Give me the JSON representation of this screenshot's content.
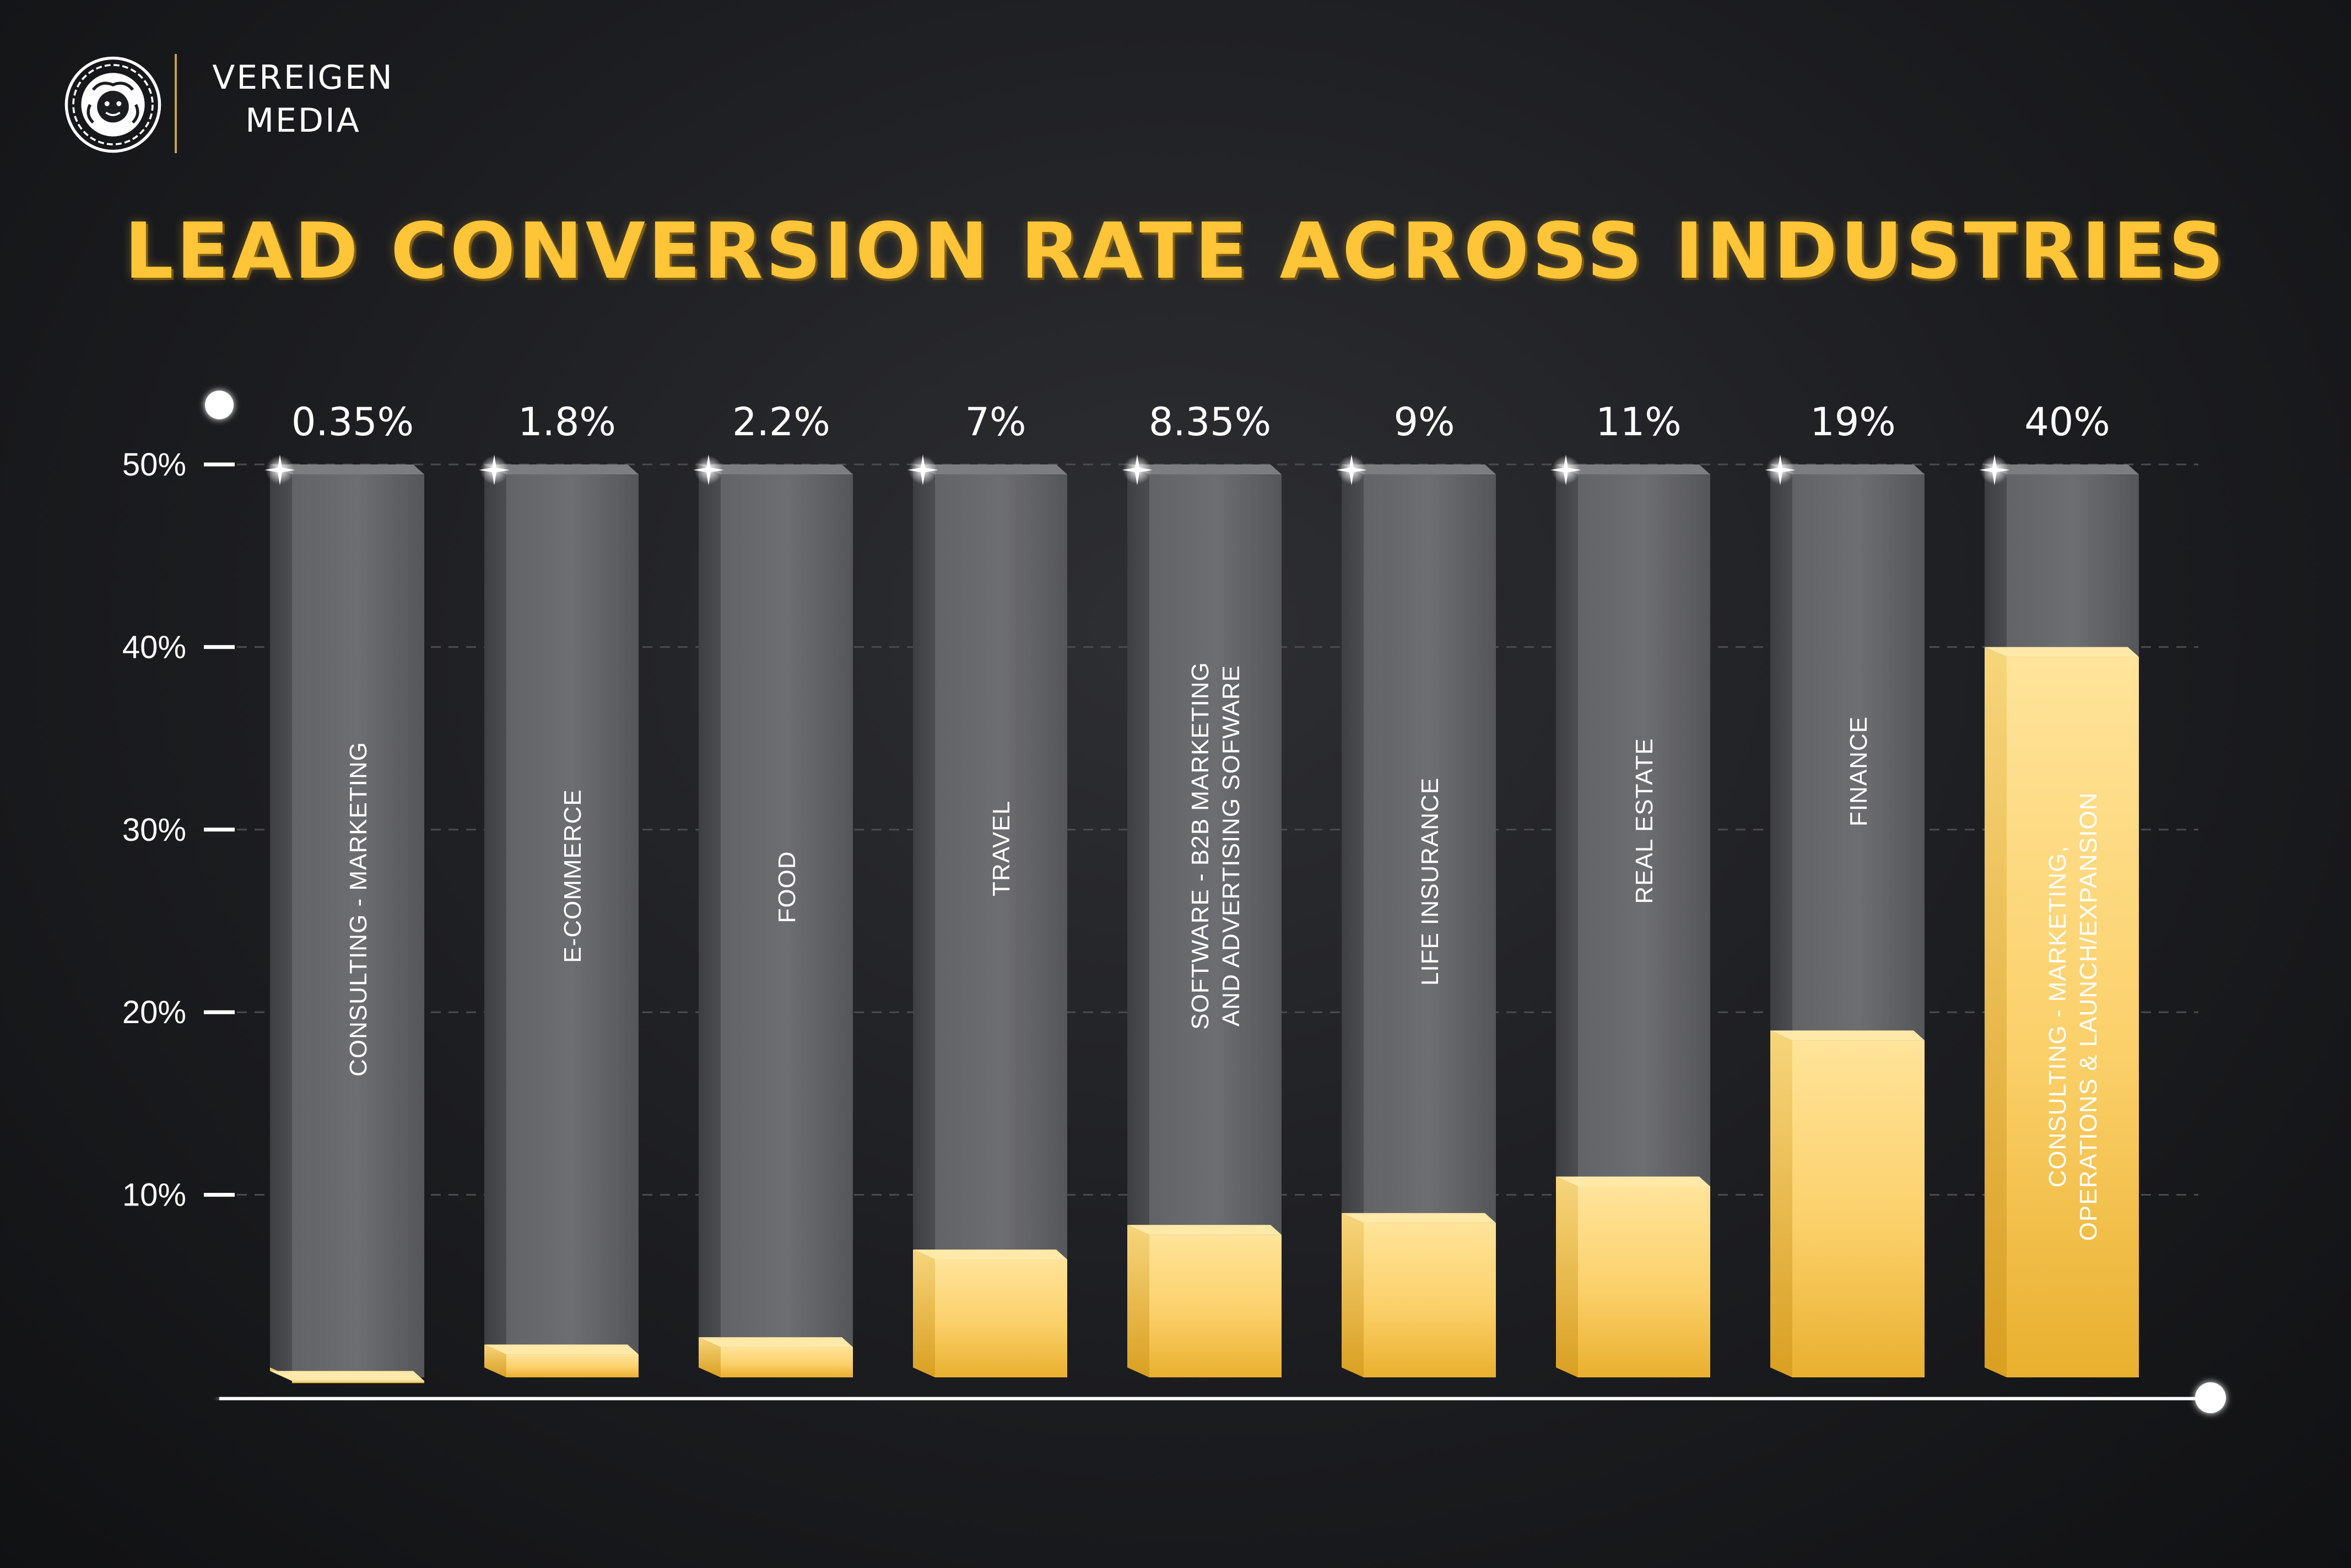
{
  "brand": {
    "line1": "VEREIGEN",
    "line2": "MEDIA",
    "accent_color": "#c9a33e"
  },
  "chart_data": {
    "type": "bar",
    "title": "LEAD CONVERSION RATE ACROSS INDUSTRIES",
    "xlabel": "",
    "ylabel": "",
    "ylim": [
      0,
      50
    ],
    "yticks": [
      "10%",
      "20%",
      "30%",
      "40%",
      "50%"
    ],
    "ytick_values": [
      10,
      20,
      30,
      40,
      50
    ],
    "grid": true,
    "categories": [
      [
        "CONSULTING - MARKETING"
      ],
      [
        "E-COMMERCE"
      ],
      [
        "FOOD"
      ],
      [
        "TRAVEL"
      ],
      [
        "SOFTWARE - B2B MARKETING",
        "AND ADVERTISING SOFWARE"
      ],
      [
        "LIFE INSURANCE"
      ],
      [
        "REAL ESTATE"
      ],
      [
        "FINANCE"
      ],
      [
        "CONSULTING - MARKETING,",
        "OPERATIONS & LAUNCH/EXPANSION"
      ]
    ],
    "values": [
      0.35,
      1.8,
      2.2,
      7,
      8.35,
      9,
      11,
      19,
      40
    ],
    "value_labels": [
      "0.35%",
      "1.8%",
      "2.2%",
      "7%",
      "8.35%",
      "9%",
      "11%",
      "19%",
      "40%"
    ],
    "colors": {
      "bar_background": "#5a5b5e",
      "bar_fill": "#fdc94a",
      "title": "#fdc537",
      "axis": "#ffffff"
    }
  }
}
